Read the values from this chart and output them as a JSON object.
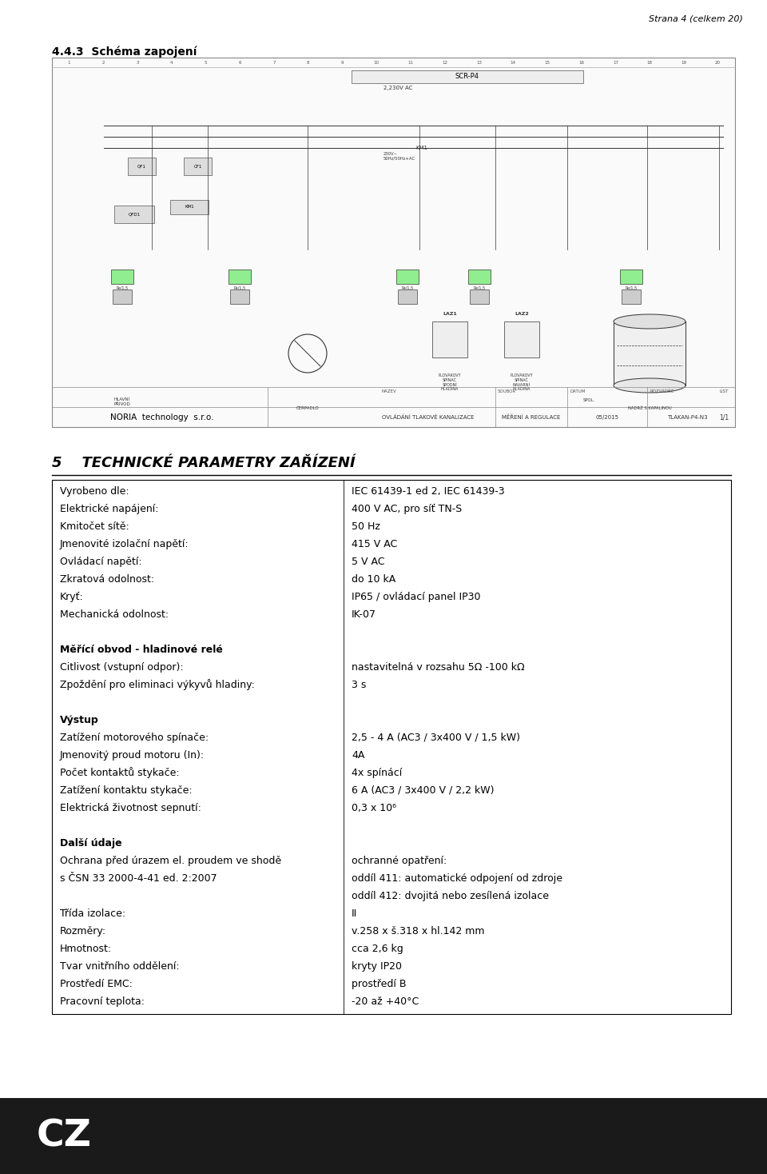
{
  "page_header": "Strana 4 (celkem 20)",
  "section_title": "4.4.3  Schéma zapojení",
  "section5_title": "5    TECHNICKÉ PARAMETRY ZAŘÍZENÍ",
  "table_rows": [
    [
      "Vyrobeno dle:",
      "IEC 61439-1 ed 2, IEC 61439-3"
    ],
    [
      "Elektrické napájení:",
      "400 V AC, pro síť TN-S"
    ],
    [
      "Kmitočet sítě:",
      "50 Hz"
    ],
    [
      "Jmenovité izolační napětí:",
      "415 V AC"
    ],
    [
      "Ovládací napětí:",
      "5 V AC"
    ],
    [
      "Zkratová odolnost:",
      "do 10 kA"
    ],
    [
      "Kryť:",
      "IP65 / ovládací panel IP30"
    ],
    [
      "Mechanická odolnost:",
      "IK-07"
    ],
    [
      "",
      ""
    ],
    [
      "Měřící obvod - hladinové relé",
      ""
    ],
    [
      "Citlivost (vstupní odpor):",
      "nastavitelná v rozsahu 5Ω -100 kΩ"
    ],
    [
      "Zpoždění pro eliminaci výkyvů hladiny:",
      "3 s"
    ],
    [
      "",
      ""
    ],
    [
      "Výstup",
      ""
    ],
    [
      "Zatížení motorového spínače:",
      "2,5 - 4 A (AC3 / 3x400 V / 1,5 kW)"
    ],
    [
      "Jmenovitý proud motoru (In):",
      "4A"
    ],
    [
      "Počet kontaktů stykače:",
      "4x spínácí"
    ],
    [
      "Zatížení kontaktu stykače:",
      "6 A (AC3 / 3x400 V / 2,2 kW)"
    ],
    [
      "Elektrická životnost sepnutí:",
      "0,3 x 10⁶"
    ],
    [
      "",
      ""
    ],
    [
      "Další údaje",
      ""
    ],
    [
      "Ochrana před úrazem el. proudem ve shodě",
      "ochranné opatření:"
    ],
    [
      "s ČSN 33 2000-4-41 ed. 2:2007",
      "oddíl 411: automatické odpojení od zdroje"
    ],
    [
      "",
      "oddíl 412: dvojitá nebo zesílená izolace"
    ],
    [
      "Třída izolace:",
      "II"
    ],
    [
      "Rozměry:",
      "v.258 x š.318 x hl.142 mm"
    ],
    [
      "Hmotnost:",
      "cca 2,6 kg"
    ],
    [
      "Tvar vnitřního oddělení:",
      "kryty IP20"
    ],
    [
      "Prostředí EMC:",
      "prostředí B"
    ],
    [
      "Pracovní teplota:",
      "-20 až +40°C"
    ]
  ],
  "bold_rows": [
    9,
    13,
    20
  ],
  "bg_color": "#ffffff",
  "text_color": "#000000",
  "border_color": "#000000",
  "diagram_bg": "#f5f5f5",
  "footer_left": "NORIA  technology  s.r.o.",
  "cz_label": "CZ",
  "cz_bg": "#1a1a1a"
}
